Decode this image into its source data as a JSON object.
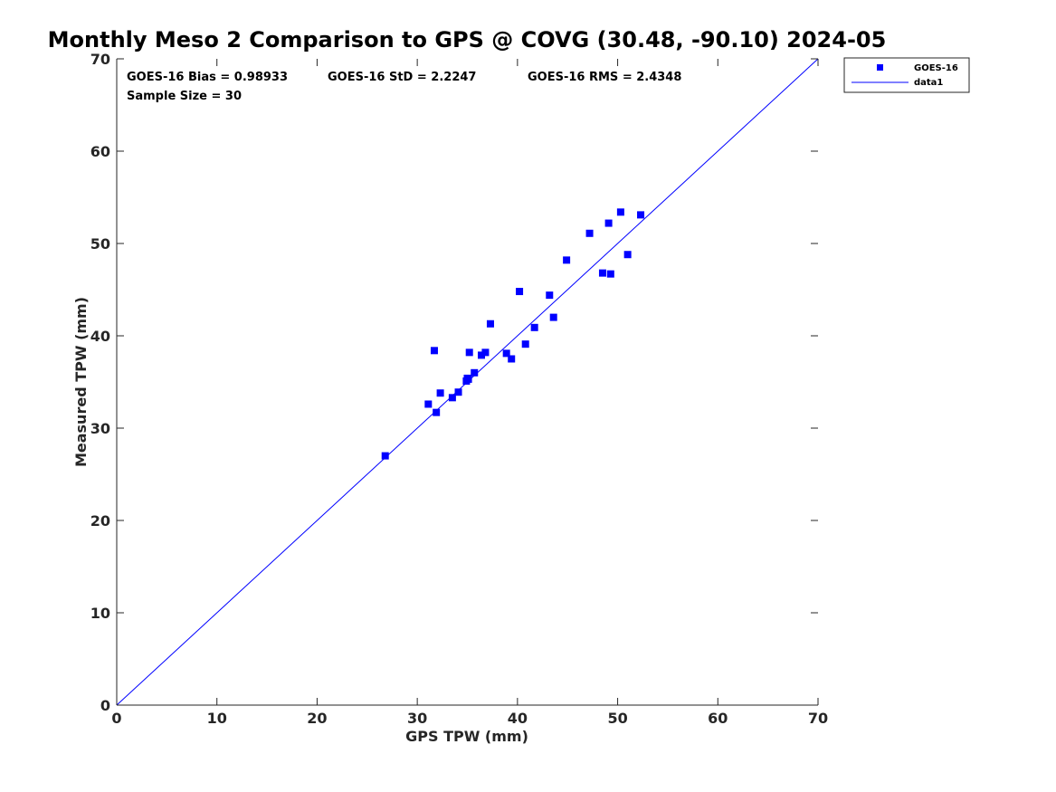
{
  "chart_data": {
    "type": "scatter",
    "title": "Monthly Meso 2 Comparison to GPS @ COVG (30.48, -90.10) 2024-05",
    "xlabel": "GPS TPW (mm)",
    "ylabel": "Measured TPW (mm)",
    "xlim": [
      0,
      70
    ],
    "ylim": [
      0,
      70
    ],
    "xticks": [
      "0",
      "10",
      "20",
      "30",
      "40",
      "50",
      "60",
      "70"
    ],
    "yticks": [
      "0",
      "10",
      "20",
      "30",
      "40",
      "50",
      "60",
      "70"
    ],
    "grid": false,
    "legend_position": "outside-top-right",
    "colors": {
      "series": "#0000ff",
      "axis": "#262626"
    },
    "stats": {
      "bias": "GOES-16 Bias = 0.98933",
      "std": "GOES-16 StD = 2.2247",
      "rms": "GOES-16 RMS = 2.4348",
      "sample": "Sample Size = 30"
    },
    "series": [
      {
        "name": "GOES-16",
        "marker": "square",
        "points": [
          [
            26.8,
            27.0
          ],
          [
            31.1,
            32.6
          ],
          [
            31.7,
            38.4
          ],
          [
            31.9,
            31.7
          ],
          [
            32.3,
            33.8
          ],
          [
            33.5,
            33.3
          ],
          [
            34.1,
            33.9
          ],
          [
            34.9,
            35.1
          ],
          [
            35.0,
            35.4
          ],
          [
            35.2,
            38.2
          ],
          [
            35.7,
            36.0
          ],
          [
            36.4,
            37.9
          ],
          [
            36.8,
            38.2
          ],
          [
            37.3,
            41.3
          ],
          [
            38.9,
            38.1
          ],
          [
            39.4,
            37.5
          ],
          [
            40.2,
            44.8
          ],
          [
            40.8,
            39.1
          ],
          [
            41.7,
            40.9
          ],
          [
            43.2,
            44.4
          ],
          [
            43.6,
            42.0
          ],
          [
            44.9,
            48.2
          ],
          [
            47.2,
            51.1
          ],
          [
            48.5,
            46.8
          ],
          [
            49.1,
            52.2
          ],
          [
            49.3,
            46.7
          ],
          [
            50.3,
            53.4
          ],
          [
            51.0,
            48.8
          ],
          [
            52.3,
            53.1
          ],
          [
            35.1,
            35.3
          ]
        ]
      },
      {
        "name": "data1",
        "marker": "line",
        "points": [
          [
            0,
            0
          ],
          [
            70,
            70
          ]
        ]
      }
    ]
  }
}
